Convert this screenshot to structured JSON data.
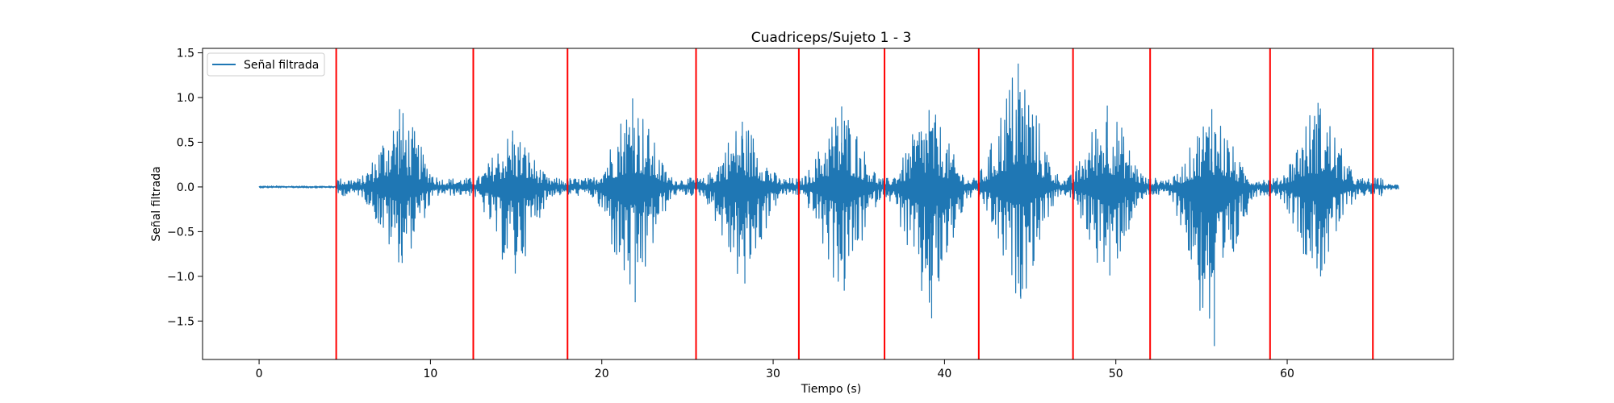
{
  "chart_data": {
    "type": "line",
    "title": "Cuadriceps/Sujeto 1 - 3",
    "xlabel": "Tiempo (s)",
    "ylabel": "Señal filtrada",
    "xlim": [
      -3.3,
      69.7
    ],
    "ylim": [
      -1.93,
      1.55
    ],
    "xticks": [
      0,
      10,
      20,
      30,
      40,
      50,
      60
    ],
    "yticks": [
      -1.5,
      -1.0,
      -0.5,
      0.0,
      0.5,
      1.0,
      1.5
    ],
    "ytick_labels": [
      "−1.5",
      "−1.0",
      "−0.5",
      "0.0",
      "0.5",
      "1.0",
      "1.5"
    ],
    "grid": false,
    "legend_position": "top-left",
    "series": [
      {
        "name": "Señal filtrada",
        "color": "#1f77b4",
        "signal_duration_s": 66.5,
        "baseline_until_s": 4.5,
        "peaks": [
          {
            "t": 8.2,
            "max": 0.87,
            "min": -0.85
          },
          {
            "t": 14.8,
            "max": 0.63,
            "min": -0.97
          },
          {
            "t": 21.8,
            "max": 0.99,
            "min": -1.29
          },
          {
            "t": 28.2,
            "max": 0.73,
            "min": -1.08
          },
          {
            "t": 34.0,
            "max": 0.9,
            "min": -1.16
          },
          {
            "t": 39.1,
            "max": 0.86,
            "min": -1.47
          },
          {
            "t": 44.3,
            "max": 1.38,
            "min": -1.25
          },
          {
            "t": 49.5,
            "max": 0.91,
            "min": -0.99
          },
          {
            "t": 55.6,
            "max": 0.87,
            "min": -1.78
          },
          {
            "t": 61.8,
            "max": 0.94,
            "min": -1.0
          }
        ]
      }
    ],
    "vlines": {
      "color": "#ff0000",
      "x": [
        4.5,
        12.5,
        18.0,
        25.5,
        31.5,
        36.5,
        42.0,
        47.5,
        52.0,
        59.0,
        65.0
      ]
    }
  }
}
